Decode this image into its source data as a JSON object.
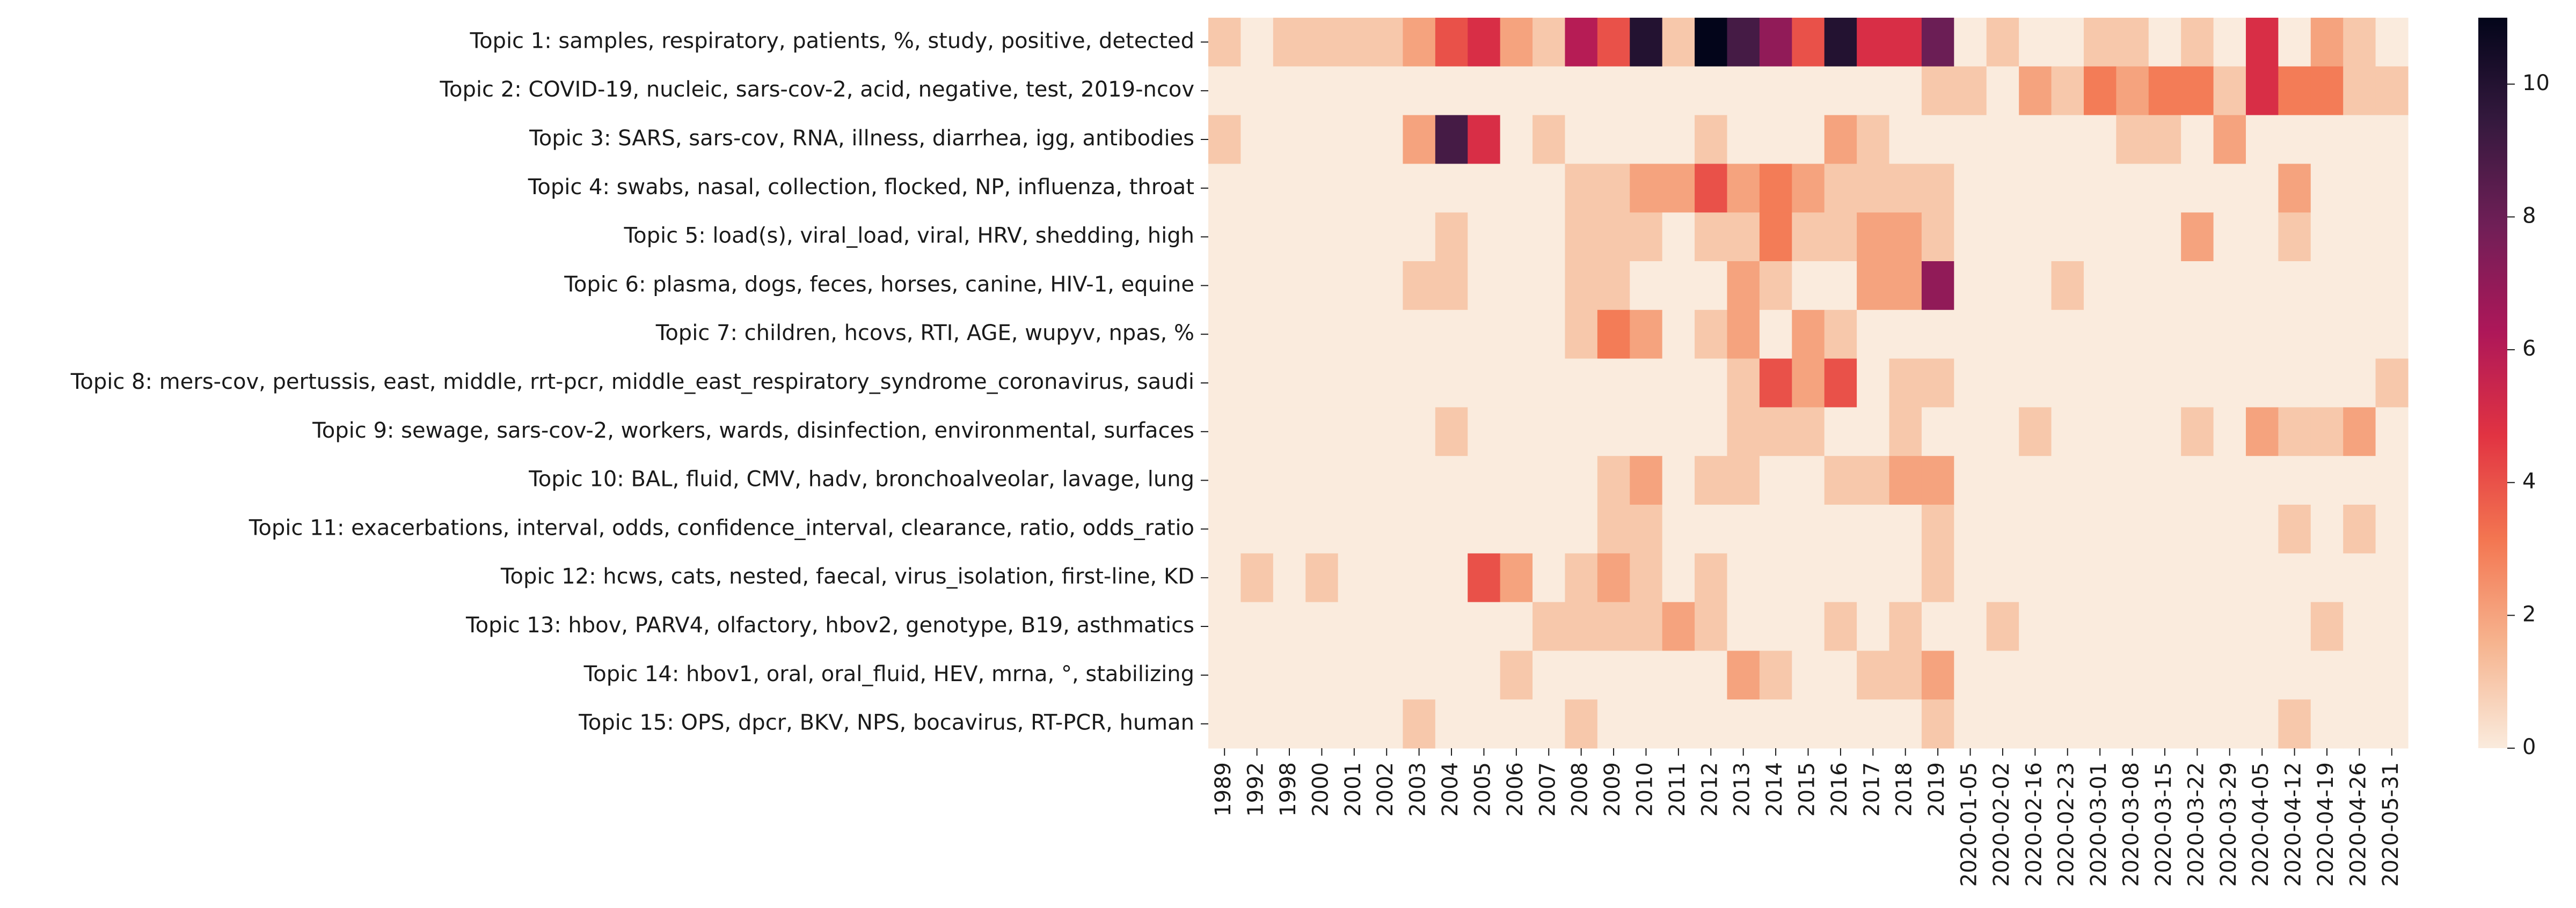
{
  "chart_data": {
    "type": "heatmap",
    "title": "",
    "xlabel": "",
    "ylabel": "",
    "x": [
      "1989",
      "1992",
      "1998",
      "2000",
      "2001",
      "2002",
      "2003",
      "2004",
      "2005",
      "2006",
      "2007",
      "2008",
      "2009",
      "2010",
      "2011",
      "2012",
      "2013",
      "2014",
      "2015",
      "2016",
      "2017",
      "2018",
      "2019",
      "2020-01-05",
      "2020-02-02",
      "2020-02-16",
      "2020-02-23",
      "2020-03-01",
      "2020-03-08",
      "2020-03-15",
      "2020-03-22",
      "2020-03-29",
      "2020-04-05",
      "2020-04-12",
      "2020-04-19",
      "2020-04-26",
      "2020-05-31"
    ],
    "y": [
      "Topic 1: samples, respiratory, patients, %, study, positive, detected",
      "Topic 2: COVID-19, nucleic, sars-cov-2, acid, negative, test, 2019-ncov",
      "Topic 3: SARS, sars-cov, RNA, illness, diarrhea, igg, antibodies",
      "Topic 4: swabs, nasal, collection, flocked, NP, influenza, throat",
      "Topic 5: load(s), viral_load, viral, HRV, shedding, high",
      "Topic 6: plasma, dogs, feces, horses, canine, HIV-1, equine",
      "Topic 7: children, hcovs, RTI, AGE, wupyv, npas, %",
      "Topic 8: mers-cov, pertussis, east, middle, rrt-pcr, middle_east_respiratory_syndrome_coronavirus, saudi",
      "Topic 9: sewage, sars-cov-2, workers, wards, disinfection, environmental, surfaces",
      "Topic 10: BAL, fluid, CMV, hadv, bronchoalveolar, lavage, lung",
      "Topic 11: exacerbations, interval, odds, confidence_interval, clearance, ratio, odds_ratio",
      "Topic 12: hcws, cats, nested, faecal, virus_isolation, first-line, KD",
      "Topic 13: hbov, PARV4, olfactory, hbov2, genotype, B19, asthmatics",
      "Topic 14: hbov1, oral, oral_fluid, HEV, mrna, °, stabilizing",
      "Topic 15: OPS, dpcr, BKV, NPS, bocavirus, RT-PCR, human"
    ],
    "values": [
      [
        1,
        0,
        1,
        1,
        1,
        1,
        2,
        4,
        5,
        2,
        1,
        6,
        4,
        10,
        1,
        11,
        9,
        7,
        4,
        10,
        5,
        5,
        8,
        0,
        1,
        0,
        0,
        1,
        1,
        0,
        1,
        0,
        5,
        0,
        2,
        1,
        0
      ],
      [
        0,
        0,
        0,
        0,
        0,
        0,
        0,
        0,
        0,
        0,
        0,
        0,
        0,
        0,
        0,
        0,
        0,
        0,
        0,
        0,
        0,
        0,
        1,
        1,
        0,
        2,
        1,
        3,
        2,
        3,
        3,
        1,
        5,
        3,
        3,
        1,
        1
      ],
      [
        1,
        0,
        0,
        0,
        0,
        0,
        2,
        9,
        5,
        0,
        1,
        0,
        0,
        0,
        0,
        1,
        0,
        0,
        0,
        2,
        1,
        0,
        0,
        0,
        0,
        0,
        0,
        0,
        1,
        1,
        0,
        2,
        0,
        0,
        0,
        0,
        0
      ],
      [
        0,
        0,
        0,
        0,
        0,
        0,
        0,
        0,
        0,
        0,
        0,
        1,
        1,
        2,
        2,
        4,
        2,
        3,
        2,
        1,
        1,
        1,
        1,
        0,
        0,
        0,
        0,
        0,
        0,
        0,
        0,
        0,
        0,
        2,
        0,
        0,
        0
      ],
      [
        0,
        0,
        0,
        0,
        0,
        0,
        0,
        1,
        0,
        0,
        0,
        1,
        1,
        1,
        0,
        1,
        1,
        3,
        1,
        1,
        2,
        2,
        1,
        0,
        0,
        0,
        0,
        0,
        0,
        0,
        2,
        0,
        0,
        1,
        0,
        0,
        0
      ],
      [
        0,
        0,
        0,
        0,
        0,
        0,
        1,
        1,
        0,
        0,
        0,
        1,
        1,
        0,
        0,
        0,
        2,
        1,
        0,
        0,
        2,
        2,
        7,
        0,
        0,
        0,
        1,
        0,
        0,
        0,
        0,
        0,
        0,
        0,
        0,
        0,
        0
      ],
      [
        0,
        0,
        0,
        0,
        0,
        0,
        0,
        0,
        0,
        0,
        0,
        1,
        3,
        2,
        0,
        1,
        2,
        0,
        2,
        1,
        0,
        0,
        0,
        0,
        0,
        0,
        0,
        0,
        0,
        0,
        0,
        0,
        0,
        0,
        0,
        0,
        0
      ],
      [
        0,
        0,
        0,
        0,
        0,
        0,
        0,
        0,
        0,
        0,
        0,
        0,
        0,
        0,
        0,
        0,
        1,
        4,
        2,
        4,
        0,
        1,
        1,
        0,
        0,
        0,
        0,
        0,
        0,
        0,
        0,
        0,
        0,
        0,
        0,
        0,
        1
      ],
      [
        0,
        0,
        0,
        0,
        0,
        0,
        0,
        1,
        0,
        0,
        0,
        0,
        0,
        0,
        0,
        0,
        1,
        1,
        1,
        0,
        0,
        1,
        0,
        0,
        0,
        1,
        0,
        0,
        0,
        0,
        1,
        0,
        2,
        1,
        1,
        2,
        0
      ],
      [
        0,
        0,
        0,
        0,
        0,
        0,
        0,
        0,
        0,
        0,
        0,
        0,
        1,
        2,
        0,
        1,
        1,
        0,
        0,
        1,
        1,
        2,
        2,
        0,
        0,
        0,
        0,
        0,
        0,
        0,
        0,
        0,
        0,
        0,
        0,
        0,
        0
      ],
      [
        0,
        0,
        0,
        0,
        0,
        0,
        0,
        0,
        0,
        0,
        0,
        0,
        1,
        1,
        0,
        0,
        0,
        0,
        0,
        0,
        0,
        0,
        1,
        0,
        0,
        0,
        0,
        0,
        0,
        0,
        0,
        0,
        0,
        1,
        0,
        1,
        0
      ],
      [
        0,
        1,
        0,
        1,
        0,
        0,
        0,
        0,
        4,
        2,
        0,
        1,
        2,
        1,
        0,
        1,
        0,
        0,
        0,
        0,
        0,
        0,
        1,
        0,
        0,
        0,
        0,
        0,
        0,
        0,
        0,
        0,
        0,
        0,
        0,
        0,
        0
      ],
      [
        0,
        0,
        0,
        0,
        0,
        0,
        0,
        0,
        0,
        0,
        1,
        1,
        1,
        1,
        2,
        1,
        0,
        0,
        0,
        1,
        0,
        1,
        0,
        0,
        1,
        0,
        0,
        0,
        0,
        0,
        0,
        0,
        0,
        0,
        1,
        0,
        0
      ],
      [
        0,
        0,
        0,
        0,
        0,
        0,
        0,
        0,
        0,
        1,
        0,
        0,
        0,
        0,
        0,
        0,
        2,
        1,
        0,
        0,
        1,
        1,
        2,
        0,
        0,
        0,
        0,
        0,
        0,
        0,
        0,
        0,
        0,
        0,
        0,
        0,
        0
      ],
      [
        0,
        0,
        0,
        0,
        0,
        0,
        1,
        0,
        0,
        0,
        0,
        1,
        0,
        0,
        0,
        0,
        0,
        0,
        0,
        0,
        0,
        0,
        1,
        0,
        0,
        0,
        0,
        0,
        0,
        0,
        0,
        0,
        0,
        1,
        0,
        0,
        0
      ]
    ],
    "vmin": 0,
    "vmax": 11,
    "colorbar_ticks": [
      "0",
      "2",
      "4",
      "6",
      "8",
      "10"
    ],
    "colormap": "rocket_r",
    "colormap_stops": [
      "#faebdd",
      "#f6b48f",
      "#f37651",
      "#e13342",
      "#ad1759",
      "#701f57",
      "#35193e",
      "#03051a"
    ],
    "grid": false,
    "legend": "colorbar-right"
  }
}
